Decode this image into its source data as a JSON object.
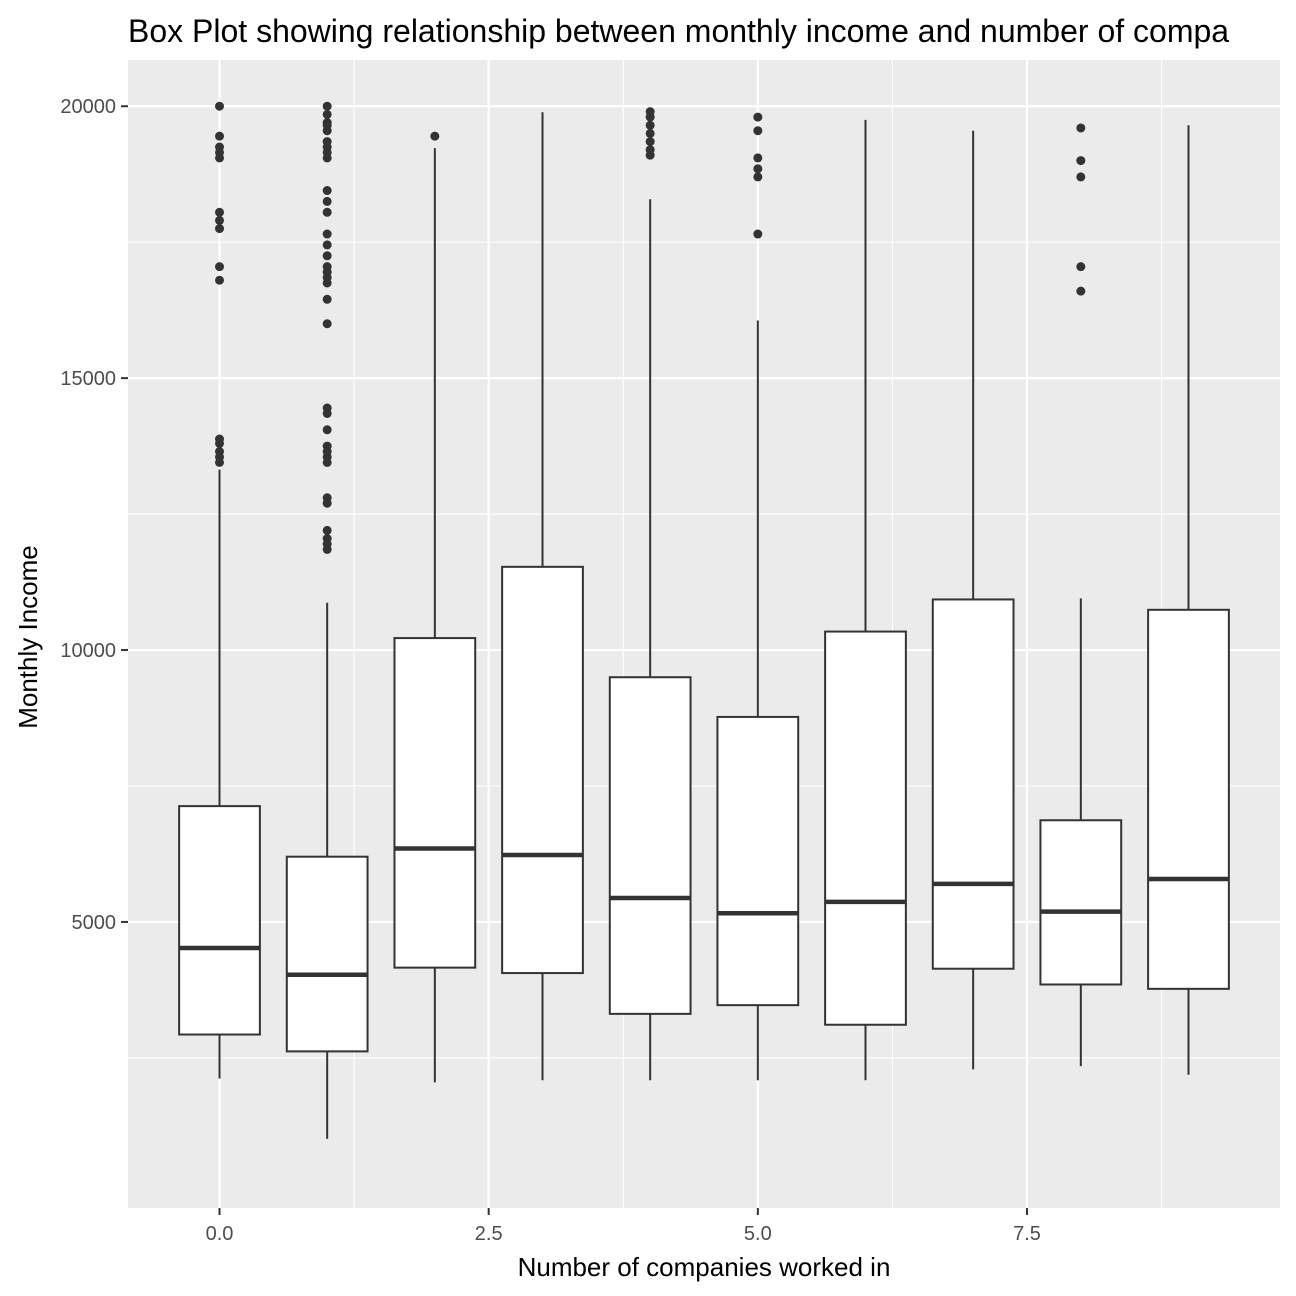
{
  "colors": {
    "panel_background": "#EBEBEB",
    "grid_major": "#FFFFFF",
    "box_fill": "#FFFFFF",
    "box_outline": "#333333",
    "outlier": "#333333",
    "tick_text": "#4D4D4D"
  },
  "chart_data": {
    "type": "boxplot",
    "title": "Box Plot showing relationship between monthly income and number of compa",
    "xlabel": "Number of companies worked in",
    "ylabel": "Monthly Income",
    "x_ticks": [
      0.0,
      2.5,
      5.0,
      7.5
    ],
    "x_tick_labels": [
      "0.0",
      "2.5",
      "5.0",
      "7.5"
    ],
    "y_ticks": [
      5000,
      10000,
      15000,
      20000
    ],
    "y_tick_labels": [
      "5000",
      "10000",
      "15000",
      "20000"
    ],
    "xlim": [
      -0.85,
      9.85
    ],
    "ylim": [
      -260,
      20850
    ],
    "grid": true,
    "legend": "none",
    "groups": [
      {
        "x": 0,
        "lower_whisker": 2120,
        "q1": 2930,
        "median": 4520,
        "q3": 7130,
        "upper_whisker": 13320,
        "outliers": [
          13450,
          13550,
          13650,
          13800,
          13880,
          16800,
          17050,
          17750,
          17900,
          18050,
          19050,
          19150,
          19250,
          19450,
          20000
        ]
      },
      {
        "x": 1,
        "lower_whisker": 1010,
        "q1": 2620,
        "median": 4030,
        "q3": 6200,
        "upper_whisker": 10870,
        "outliers": [
          11850,
          11950,
          12050,
          12200,
          12700,
          12800,
          13450,
          13550,
          13650,
          13750,
          14050,
          14350,
          14450,
          16000,
          16450,
          16750,
          16850,
          16950,
          17050,
          17250,
          17450,
          17650,
          18050,
          18250,
          18450,
          19050,
          19150,
          19250,
          19350,
          19550,
          19650,
          19700,
          19850,
          20000
        ]
      },
      {
        "x": 2,
        "lower_whisker": 2050,
        "q1": 4160,
        "median": 6350,
        "q3": 10220,
        "upper_whisker": 19230,
        "outliers": [
          19450
        ]
      },
      {
        "x": 3,
        "lower_whisker": 2090,
        "q1": 4060,
        "median": 6230,
        "q3": 11530,
        "upper_whisker": 19890,
        "outliers": []
      },
      {
        "x": 4,
        "lower_whisker": 2090,
        "q1": 3310,
        "median": 5440,
        "q3": 9500,
        "upper_whisker": 18290,
        "outliers": [
          19100,
          19200,
          19350,
          19500,
          19650,
          19800,
          19900
        ]
      },
      {
        "x": 5,
        "lower_whisker": 2090,
        "q1": 3470,
        "median": 5160,
        "q3": 8770,
        "upper_whisker": 16060,
        "outliers": [
          17650,
          18700,
          18850,
          19050,
          19550,
          19800
        ]
      },
      {
        "x": 6,
        "lower_whisker": 2090,
        "q1": 3110,
        "median": 5370,
        "q3": 10340,
        "upper_whisker": 19750,
        "outliers": []
      },
      {
        "x": 7,
        "lower_whisker": 2290,
        "q1": 4140,
        "median": 5700,
        "q3": 10930,
        "upper_whisker": 19550,
        "outliers": []
      },
      {
        "x": 8,
        "lower_whisker": 2350,
        "q1": 3850,
        "median": 5190,
        "q3": 6870,
        "upper_whisker": 10950,
        "outliers": [
          16600,
          17050,
          18700,
          19000,
          19600
        ]
      },
      {
        "x": 9,
        "lower_whisker": 2190,
        "q1": 3770,
        "median": 5790,
        "q3": 10740,
        "upper_whisker": 19650,
        "outliers": []
      }
    ]
  }
}
